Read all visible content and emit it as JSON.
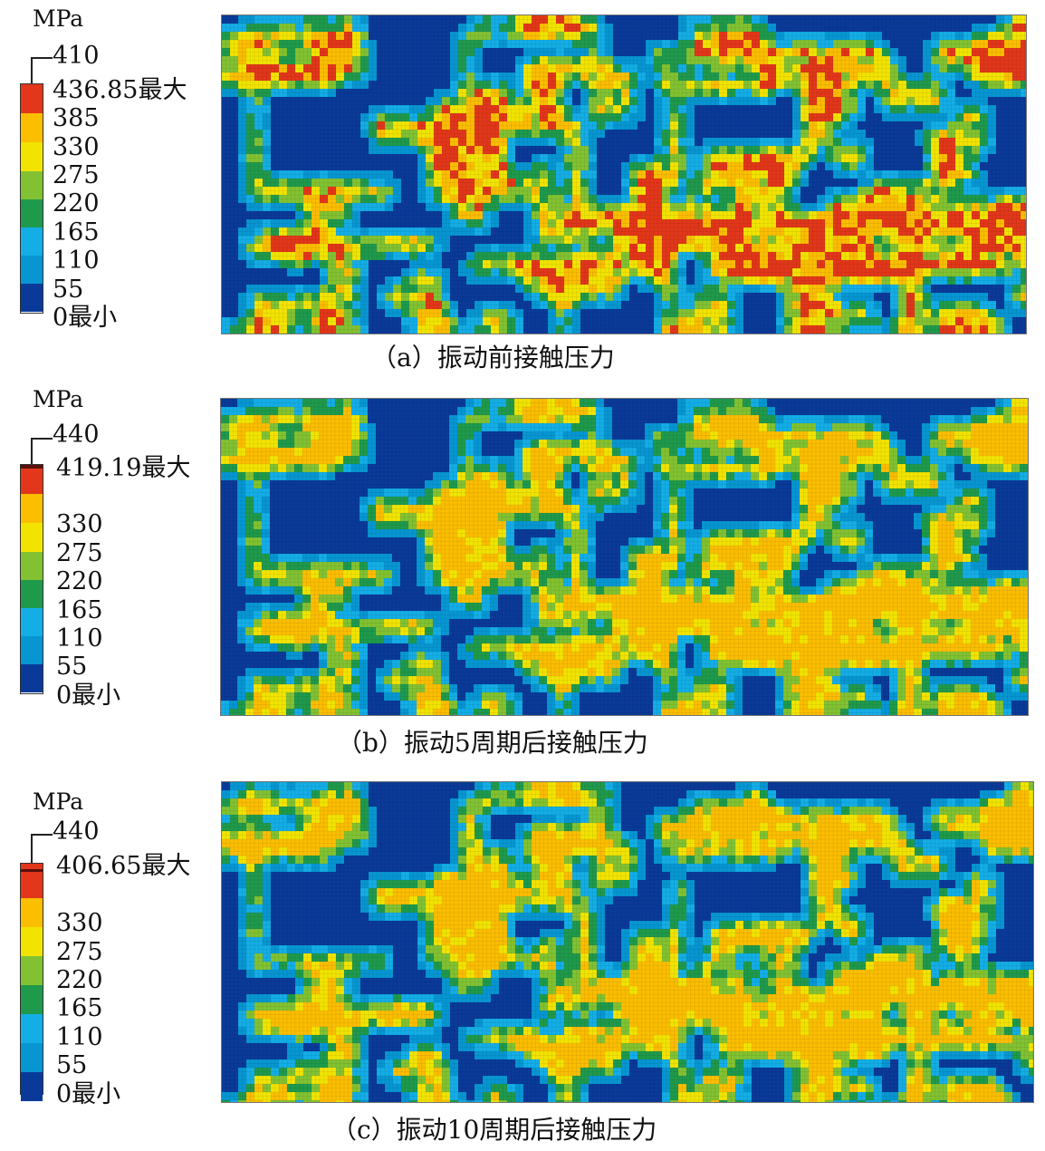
{
  "legend_colors": [
    "#0a3a99",
    "#0796d2",
    "#14aee6",
    "#1f9a4c",
    "#82c232",
    "#f2e400",
    "#fbbe00",
    "#e2371a"
  ],
  "background_color": "#0a3a99",
  "panels": [
    {
      "id": "a",
      "unit": "MPa",
      "max_tick": "410",
      "max_value_label": "436.85最大",
      "labels": [
        "385",
        "330",
        "275",
        "220",
        "165",
        "110",
        "55",
        "0最小"
      ],
      "caption": "（a）振动前接触压力"
    },
    {
      "id": "b",
      "unit": "MPa",
      "max_tick": "440",
      "max_value_label": "419.19最大",
      "labels": [
        "330",
        "275",
        "220",
        "165",
        "110",
        "55",
        "0最小"
      ],
      "caption": "（b）振动5周期后接触压力"
    },
    {
      "id": "c",
      "unit": "MPa",
      "max_tick": "440",
      "max_value_label": "406.65最大",
      "labels": [
        "330",
        "275",
        "220",
        "165",
        "110",
        "55",
        "0最小"
      ],
      "caption": "（c）振动10周期后接触压力"
    }
  ]
}
